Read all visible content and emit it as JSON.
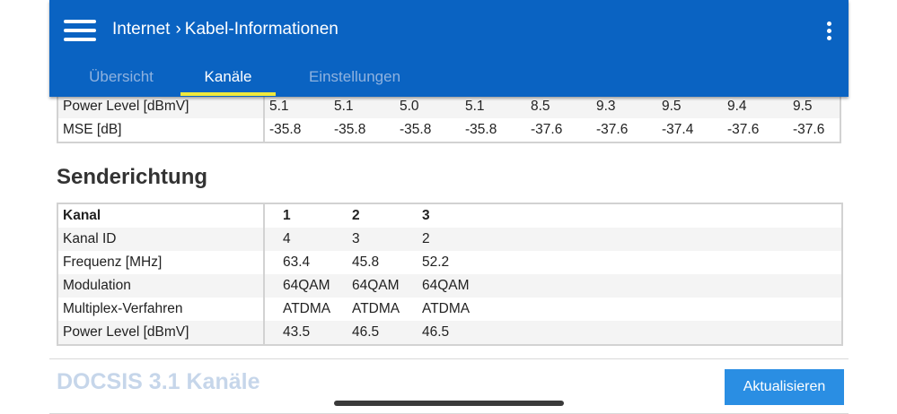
{
  "header": {
    "breadcrumb_root": "Internet",
    "breadcrumb_sep": "›",
    "breadcrumb_current": "Kabel-Informationen"
  },
  "tabs": [
    {
      "label": "Übersicht",
      "active": false
    },
    {
      "label": "Kanäle",
      "active": true
    },
    {
      "label": "Einstellungen",
      "active": false
    }
  ],
  "downstream": {
    "rows": [
      {
        "label": "Power Level [dBmV]",
        "values": [
          "5.1",
          "5.1",
          "5.0",
          "5.1",
          "8.5",
          "9.3",
          "9.5",
          "9.4",
          "9.5"
        ]
      },
      {
        "label": "MSE [dB]",
        "values": [
          "-35.8",
          "-35.8",
          "-35.8",
          "-35.8",
          "-37.6",
          "-37.6",
          "-37.4",
          "-37.6",
          "-37.6"
        ]
      }
    ]
  },
  "upstream": {
    "title": "Senderichtung",
    "header": {
      "label": "Kanal",
      "values": [
        "1",
        "2",
        "3"
      ]
    },
    "rows": [
      {
        "label": "Kanal ID",
        "values": [
          "4",
          "3",
          "2"
        ]
      },
      {
        "label": "Frequenz [MHz]",
        "values": [
          "63.4",
          "45.8",
          "52.2"
        ]
      },
      {
        "label": "Modulation",
        "values": [
          "64QAM",
          "64QAM",
          "64QAM"
        ]
      },
      {
        "label": "Multiplex-Verfahren",
        "values": [
          "ATDMA",
          "ATDMA",
          "ATDMA"
        ]
      },
      {
        "label": "Power Level [dBmV]",
        "values": [
          "43.5",
          "46.5",
          "46.5"
        ]
      }
    ]
  },
  "docsis31": {
    "title": "DOCSIS 3.1 Kanäle"
  },
  "actions": {
    "refresh_label": "Aktualisieren"
  },
  "colors": {
    "header_bg": "#0a63c2",
    "tab_underline": "#f1e93b",
    "button_bg": "#2a8ee3"
  }
}
